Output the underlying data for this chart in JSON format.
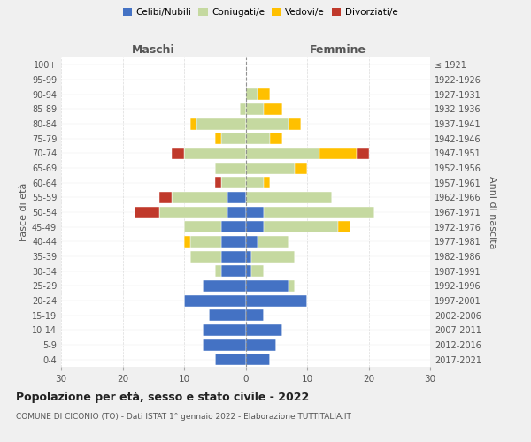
{
  "age_groups": [
    "0-4",
    "5-9",
    "10-14",
    "15-19",
    "20-24",
    "25-29",
    "30-34",
    "35-39",
    "40-44",
    "45-49",
    "50-54",
    "55-59",
    "60-64",
    "65-69",
    "70-74",
    "75-79",
    "80-84",
    "85-89",
    "90-94",
    "95-99",
    "100+"
  ],
  "birth_years": [
    "2017-2021",
    "2012-2016",
    "2007-2011",
    "2002-2006",
    "1997-2001",
    "1992-1996",
    "1987-1991",
    "1982-1986",
    "1977-1981",
    "1972-1976",
    "1967-1971",
    "1962-1966",
    "1957-1961",
    "1952-1956",
    "1947-1951",
    "1942-1946",
    "1937-1941",
    "1932-1936",
    "1927-1931",
    "1922-1926",
    "≤ 1921"
  ],
  "maschi": {
    "celibi": [
      5,
      7,
      7,
      6,
      10,
      7,
      4,
      4,
      4,
      4,
      3,
      3,
      0,
      0,
      0,
      0,
      0,
      0,
      0,
      0,
      0
    ],
    "coniugati": [
      0,
      0,
      0,
      0,
      0,
      0,
      1,
      5,
      5,
      6,
      11,
      9,
      4,
      5,
      10,
      4,
      8,
      1,
      0,
      0,
      0
    ],
    "vedovi": [
      0,
      0,
      0,
      0,
      0,
      0,
      0,
      0,
      1,
      0,
      0,
      0,
      0,
      0,
      0,
      1,
      1,
      0,
      0,
      0,
      0
    ],
    "divorziati": [
      0,
      0,
      0,
      0,
      0,
      0,
      0,
      0,
      0,
      0,
      4,
      2,
      1,
      0,
      2,
      0,
      0,
      0,
      0,
      0,
      0
    ]
  },
  "femmine": {
    "nubili": [
      4,
      5,
      6,
      3,
      10,
      7,
      1,
      1,
      2,
      3,
      3,
      0,
      0,
      0,
      0,
      0,
      0,
      0,
      0,
      0,
      0
    ],
    "coniugate": [
      0,
      0,
      0,
      0,
      0,
      1,
      2,
      7,
      5,
      12,
      18,
      14,
      3,
      8,
      12,
      4,
      7,
      3,
      2,
      0,
      0
    ],
    "vedove": [
      0,
      0,
      0,
      0,
      0,
      0,
      0,
      0,
      0,
      2,
      0,
      0,
      1,
      2,
      6,
      2,
      2,
      3,
      2,
      0,
      0
    ],
    "divorziate": [
      0,
      0,
      0,
      0,
      0,
      0,
      0,
      0,
      0,
      0,
      0,
      0,
      0,
      0,
      2,
      0,
      0,
      0,
      0,
      0,
      0
    ]
  },
  "colors": {
    "celibi_nubili": "#4472c4",
    "coniugati": "#c5d9a0",
    "vedovi": "#ffc000",
    "divorziati": "#c0392b"
  },
  "xlim": 30,
  "title": "Popolazione per età, sesso e stato civile - 2022",
  "subtitle": "COMUNE DI CICONIO (TO) - Dati ISTAT 1° gennaio 2022 - Elaborazione TUTTITALIA.IT",
  "xlabel_left": "Maschi",
  "xlabel_right": "Femmine",
  "ylabel_left": "Fasce di età",
  "ylabel_right": "Anni di nascita",
  "bg_color": "#f0f0f0",
  "plot_bg_color": "#ffffff",
  "grid_color": "#cccccc"
}
